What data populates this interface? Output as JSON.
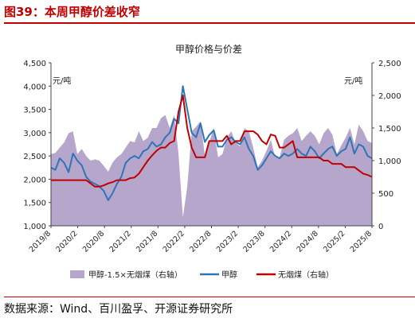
{
  "header": {
    "figure_label": "图39：本周甲醇价差收窄",
    "source": "数据来源：Wind、百川盈孚、开源证券研究所"
  },
  "colors": {
    "title_red": "#c00000",
    "area": "#b7a6cc",
    "methanol": "#2e75b6",
    "coal": "#c00000"
  },
  "chart_data": {
    "type": "area",
    "title": "甲醇价格与价差",
    "left_unit": "元/吨",
    "right_unit": "元/吨",
    "left_ylim": [
      1000,
      4500
    ],
    "left_ticks": [
      "1,000",
      "1,500",
      "2,000",
      "2,500",
      "3,000",
      "3,500",
      "4,000",
      "4,500"
    ],
    "right_ylim": [
      0,
      2500
    ],
    "right_ticks": [
      "0",
      "500",
      "1,000",
      "1,500",
      "2,000",
      "2,500"
    ],
    "x_ticks": [
      "2019/8",
      "2020/2",
      "2020/8",
      "2021/2",
      "2021/8",
      "2022/2",
      "2022/8",
      "2023/2",
      "2023/8",
      "2024/2",
      "2024/8",
      "2025/2",
      "2025/8"
    ],
    "grid": false,
    "legend_position": "bottom",
    "legend": [
      "甲醇-1.5×无烟煤（右轴）",
      "甲醇",
      "无烟煤（右轴）"
    ],
    "x": [
      0,
      1,
      2,
      3,
      4,
      5,
      6,
      7,
      8,
      9,
      10,
      11,
      12,
      13,
      14,
      15,
      16,
      17,
      18,
      19,
      20,
      21,
      22,
      23,
      24,
      25,
      26,
      27,
      28,
      29,
      30,
      31,
      32,
      33,
      34,
      35,
      36,
      37,
      38,
      39,
      40,
      41,
      42,
      43,
      44,
      45,
      46,
      47,
      48,
      49,
      50,
      51,
      52,
      53,
      54,
      55,
      56,
      57,
      58,
      59,
      60,
      61,
      62,
      63,
      64,
      65,
      66,
      67,
      68,
      69,
      70,
      71,
      72,
      73
    ],
    "series": [
      {
        "name": "甲醇-1.5×无烟煤（右轴）",
        "axis": "right",
        "values": [
          1100,
          1120,
          1200,
          1280,
          1420,
          1450,
          1100,
          1180,
          1070,
          1000,
          1020,
          1000,
          920,
          830,
          970,
          1050,
          1100,
          1200,
          1300,
          1280,
          1450,
          1300,
          1350,
          1500,
          1500,
          1650,
          1700,
          1500,
          1700,
          1100,
          130,
          600,
          1450,
          1520,
          1600,
          1080,
          1280,
          1500,
          1050,
          1100,
          1350,
          1450,
          1270,
          1220,
          1500,
          1450,
          1200,
          900,
          1000,
          1150,
          1320,
          1050,
          1050,
          1320,
          1380,
          1420,
          1500,
          1300,
          1380,
          1450,
          1380,
          1250,
          1420,
          1500,
          1400,
          1100,
          1230,
          1350,
          1500,
          1250,
          1550,
          1450,
          1300,
          1270
        ]
      },
      {
        "name": "甲醇",
        "axis": "left",
        "values": [
          2250,
          2200,
          2450,
          2350,
          2150,
          2550,
          2400,
          2300,
          2050,
          1950,
          1900,
          1850,
          1750,
          1550,
          1700,
          1900,
          2050,
          2350,
          2450,
          2500,
          2450,
          2600,
          2650,
          2800,
          2700,
          2750,
          2900,
          3000,
          3300,
          3200,
          4000,
          3500,
          3000,
          2900,
          3200,
          2800,
          2950,
          3050,
          2700,
          2700,
          2850,
          2900,
          2800,
          2750,
          2900,
          2650,
          2500,
          2200,
          2300,
          2450,
          2600,
          2500,
          2450,
          2550,
          2500,
          2550,
          2650,
          2550,
          2500,
          2700,
          2600,
          2450,
          2550,
          2650,
          2700,
          2500,
          2600,
          2650,
          2900,
          2550,
          2750,
          2700,
          2500,
          2450
        ]
      },
      {
        "name": "无烟煤（右轴）",
        "axis": "right",
        "values": [
          700,
          700,
          700,
          700,
          700,
          700,
          700,
          700,
          700,
          650,
          600,
          600,
          620,
          650,
          670,
          700,
          700,
          700,
          730,
          740,
          800,
          900,
          1000,
          1080,
          1150,
          1200,
          1200,
          1270,
          1300,
          1750,
          2000,
          1500,
          1200,
          1050,
          1050,
          1050,
          1300,
          1300,
          1300,
          1300,
          1380,
          1250,
          1300,
          1300,
          1450,
          1450,
          1450,
          1400,
          1300,
          1250,
          1400,
          1380,
          1200,
          1200,
          1250,
          1300,
          1050,
          1050,
          1050,
          1050,
          1050,
          1050,
          1000,
          1000,
          950,
          950,
          950,
          900,
          900,
          900,
          850,
          800,
          780,
          750
        ]
      }
    ]
  }
}
